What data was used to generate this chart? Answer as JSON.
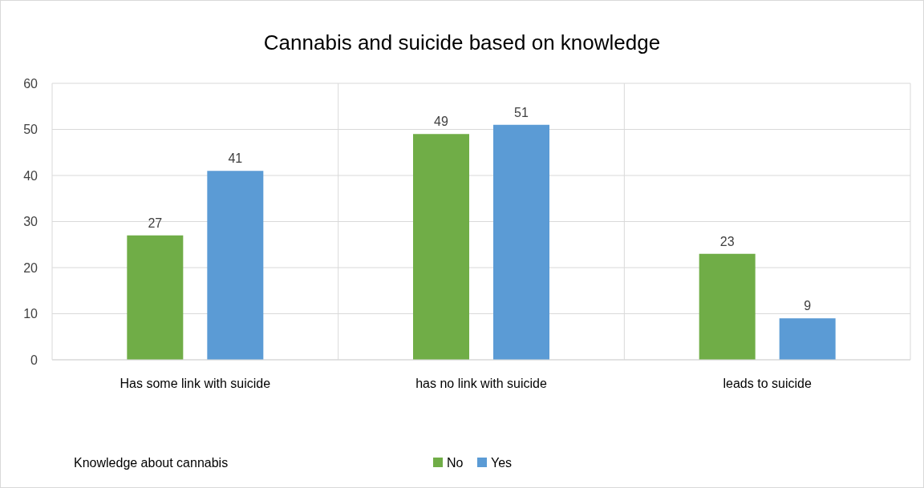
{
  "chart_data": {
    "type": "bar",
    "title": "Cannabis and suicide based on knowledge",
    "categories": [
      "Has some link with suicide",
      "has no link with suicide",
      "leads to suicide"
    ],
    "series": [
      {
        "name": "No",
        "color": "#70ad47",
        "values": [
          27,
          49,
          23
        ]
      },
      {
        "name": "Yes",
        "color": "#5b9bd5",
        "values": [
          41,
          51,
          9
        ]
      }
    ],
    "ylim": [
      0,
      60
    ],
    "yticks": [
      0,
      10,
      20,
      30,
      40,
      50,
      60
    ],
    "grid": true,
    "legend": "bottom",
    "legend_title": "Knowledge about cannabis",
    "data_labels": true
  }
}
